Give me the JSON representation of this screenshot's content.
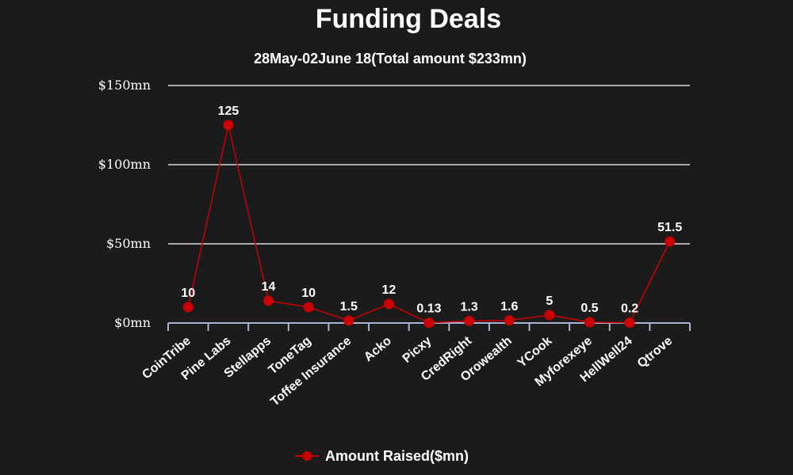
{
  "colors": {
    "background": "#1b1b1b",
    "series": "#cc0000",
    "grid": "#d9d9d9",
    "axis": "#aab4d9",
    "text": "#ffffff"
  },
  "chart_data": {
    "type": "line",
    "title": "Funding Deals",
    "subtitle": "28May-02June 18(Total amount $233mn)",
    "xlabel": "",
    "ylabel": "",
    "categories": [
      "CoinTribe",
      "Pine Labs",
      "Stellapps",
      "ToneTag",
      "Toffee Insurance",
      "Acko",
      "Picxy",
      "CredRight",
      "Orowealth",
      "YCook",
      "Myforexeye",
      "HellWell24",
      "Qtrove"
    ],
    "series": [
      {
        "name": "Amount Raised($mn)",
        "values": [
          10,
          125,
          14,
          10,
          1.5,
          12,
          0.13,
          1.3,
          1.6,
          5,
          0.5,
          0.2,
          51.5
        ],
        "labels": [
          "10",
          "125",
          "14",
          "10",
          "1.5",
          "12",
          "0.13",
          "1.3",
          "1.6",
          "5",
          "0.5",
          "0.2",
          "51.5"
        ]
      }
    ],
    "ylim": [
      0,
      150
    ],
    "yticks": [
      0,
      50,
      100,
      150
    ],
    "ytick_labels": [
      "$0mn",
      "$50mn",
      "$100mn",
      "$150mn"
    ],
    "grid": true,
    "legend_position": "bottom-center"
  }
}
